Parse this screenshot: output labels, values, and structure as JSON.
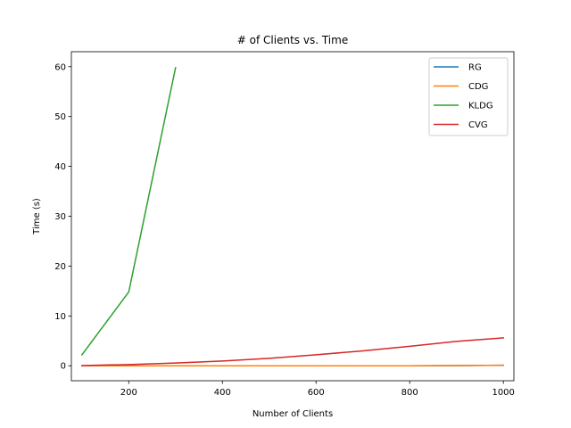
{
  "chart_data": {
    "type": "line",
    "title": "# of Clients vs. Time",
    "xlabel": "Number of Clients",
    "ylabel": "Time (s)",
    "xlim": [
      77.5,
      1022.5
    ],
    "ylim": [
      -3,
      63
    ],
    "xticks": [
      200,
      400,
      600,
      800,
      1000
    ],
    "yticks": [
      0,
      10,
      20,
      30,
      40,
      50,
      60
    ],
    "grid": false,
    "legend_position": "top-right",
    "series": [
      {
        "name": "RG",
        "color": "#1f77b4",
        "x": [
          100,
          200,
          300,
          400,
          500,
          600,
          700,
          800,
          900,
          1000
        ],
        "y": [
          0.0,
          0.0,
          0.0,
          0.0,
          0.0,
          0.0,
          0.0,
          0.0,
          0.05,
          0.1
        ]
      },
      {
        "name": "CDG",
        "color": "#ff7f0e",
        "x": [
          100,
          200,
          300,
          400,
          500,
          600,
          700,
          800,
          900,
          1000
        ],
        "y": [
          0.0,
          0.0,
          0.0,
          0.0,
          0.0,
          0.0,
          0.0,
          0.0,
          0.05,
          0.1
        ]
      },
      {
        "name": "KLDG",
        "color": "#2ca02c",
        "x": [
          100,
          200,
          300
        ],
        "y": [
          2.2,
          14.8,
          59.8
        ]
      },
      {
        "name": "CVG",
        "color": "#d62728",
        "x": [
          100,
          200,
          300,
          400,
          500,
          600,
          700,
          800,
          900,
          1000
        ],
        "y": [
          0.05,
          0.25,
          0.55,
          0.95,
          1.5,
          2.2,
          3.0,
          3.9,
          4.9,
          5.6
        ]
      }
    ]
  }
}
